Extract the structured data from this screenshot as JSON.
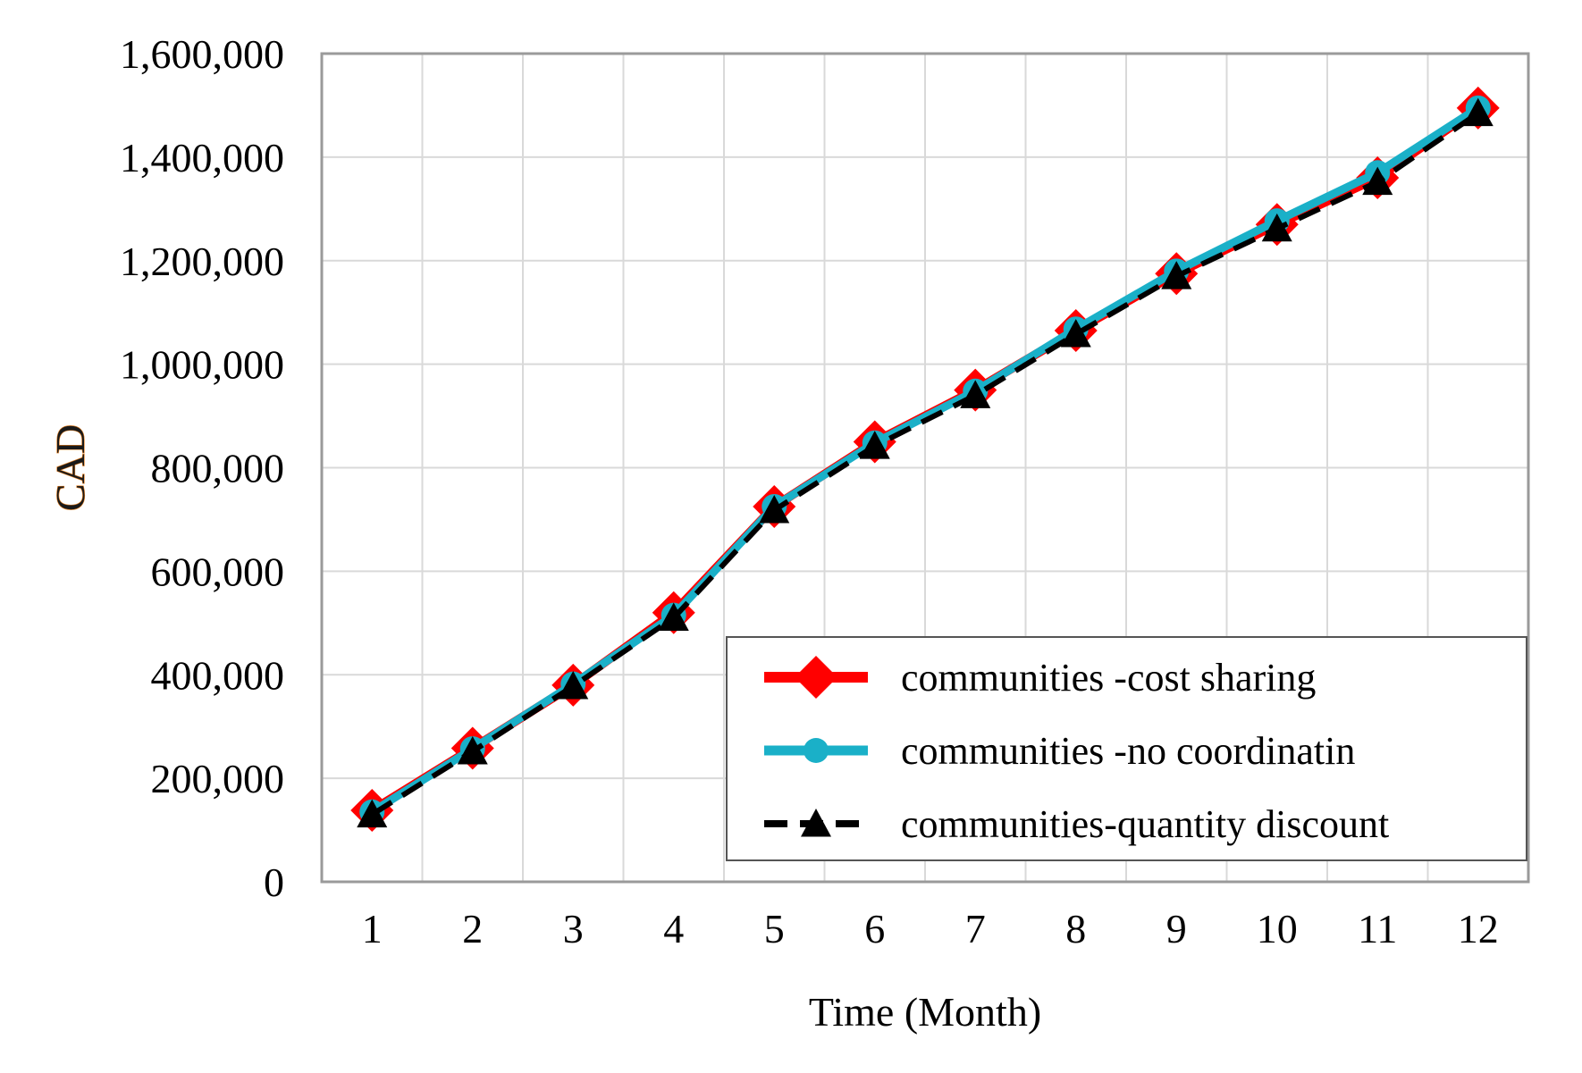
{
  "chart_data": {
    "type": "line",
    "title": "",
    "xlabel": "Time (Month)",
    "ylabel": "CAD",
    "categories": [
      "1",
      "2",
      "3",
      "4",
      "5",
      "6",
      "7",
      "8",
      "9",
      "10",
      "11",
      "12"
    ],
    "ylim": [
      0,
      1600000
    ],
    "yticks": [
      0,
      200000,
      400000,
      600000,
      800000,
      1000000,
      1200000,
      1400000,
      1600000
    ],
    "ytick_labels": [
      "0",
      "200,000",
      "400,000",
      "600,000",
      "800,000",
      "1,000,000",
      "1,200,000",
      "1,400,000",
      "1,600,000"
    ],
    "grid": true,
    "legend_position": "bottom-right",
    "series": [
      {
        "name": "communities -cost sharing",
        "color": "#ff0000",
        "marker": "diamond",
        "line": "solid",
        "values": [
          138000,
          258000,
          380000,
          520000,
          725000,
          850000,
          950000,
          1065000,
          1175000,
          1270000,
          1360000,
          1495000
        ]
      },
      {
        "name": "communities -no coordinatin",
        "color": "#1ab0c8",
        "marker": "circle",
        "line": "solid",
        "values": [
          135000,
          257000,
          382000,
          515000,
          725000,
          848000,
          948000,
          1068000,
          1180000,
          1277000,
          1370000,
          1495000
        ]
      },
      {
        "name": "communities-quantity discount",
        "color": "#000000",
        "marker": "triangle",
        "line": "dashed",
        "values": [
          130000,
          252000,
          378000,
          510000,
          718000,
          842000,
          940000,
          1058000,
          1170000,
          1262000,
          1352000,
          1485000
        ]
      }
    ]
  }
}
